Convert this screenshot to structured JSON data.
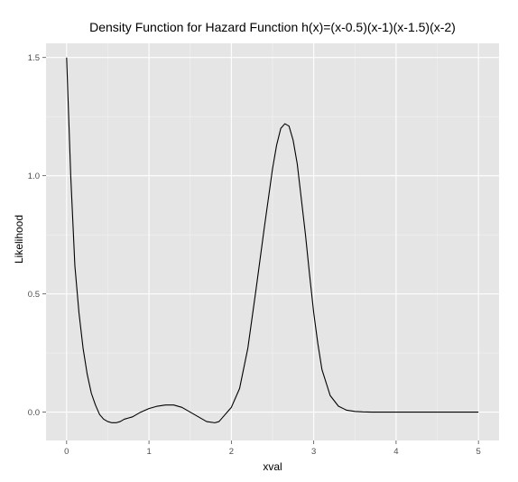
{
  "chart_data": {
    "type": "line",
    "title": "Density Function for Hazard Function h(x)=(x-0.5)(x-1)(x-1.5)(x-2)",
    "xlabel": "xval",
    "ylabel": "Likelihood",
    "xlim": [
      -0.25,
      5.25
    ],
    "ylim": [
      -0.12,
      1.56
    ],
    "x_ticks": [
      0,
      1,
      2,
      3,
      4,
      5
    ],
    "x_tick_labels": [
      "0",
      "1",
      "2",
      "3",
      "4",
      "5"
    ],
    "y_ticks": [
      0,
      0.5,
      1,
      1.5
    ],
    "y_tick_labels": [
      "0.0",
      "0.5",
      "1.0",
      "1.5"
    ],
    "grid": true,
    "colors": {
      "panel": "#e5e5e5",
      "grid_major": "#ffffff",
      "grid_minor": "#f2f2f2",
      "line": "#000000"
    },
    "series": [
      {
        "x": [
          0,
          0.05,
          0.1,
          0.15,
          0.2,
          0.25,
          0.3,
          0.35,
          0.4,
          0.45,
          0.5,
          0.55,
          0.6,
          0.65,
          0.7,
          0.75,
          0.8,
          0.9,
          1.0,
          1.1,
          1.2,
          1.3,
          1.4,
          1.5,
          1.6,
          1.7,
          1.8,
          1.85,
          1.9,
          2.0,
          2.1,
          2.2,
          2.3,
          2.4,
          2.5,
          2.55,
          2.6,
          2.65,
          2.7,
          2.75,
          2.8,
          2.85,
          2.9,
          2.95,
          3.0,
          3.05,
          3.1,
          3.2,
          3.3,
          3.4,
          3.5,
          3.6,
          3.7,
          4.0,
          4.5,
          5.0
        ],
        "y": [
          1.5,
          1.0,
          0.62,
          0.42,
          0.27,
          0.16,
          0.08,
          0.03,
          -0.01,
          -0.03,
          -0.04,
          -0.045,
          -0.045,
          -0.04,
          -0.03,
          -0.025,
          -0.02,
          0.0,
          0.015,
          0.025,
          0.03,
          0.03,
          0.02,
          0.0,
          -0.02,
          -0.04,
          -0.045,
          -0.04,
          -0.02,
          0.02,
          0.1,
          0.27,
          0.52,
          0.78,
          1.03,
          1.13,
          1.2,
          1.22,
          1.21,
          1.15,
          1.05,
          0.9,
          0.75,
          0.58,
          0.42,
          0.29,
          0.18,
          0.07,
          0.025,
          0.008,
          0.003,
          0.001,
          0.0,
          0.0,
          0.0,
          0.0
        ]
      }
    ]
  }
}
